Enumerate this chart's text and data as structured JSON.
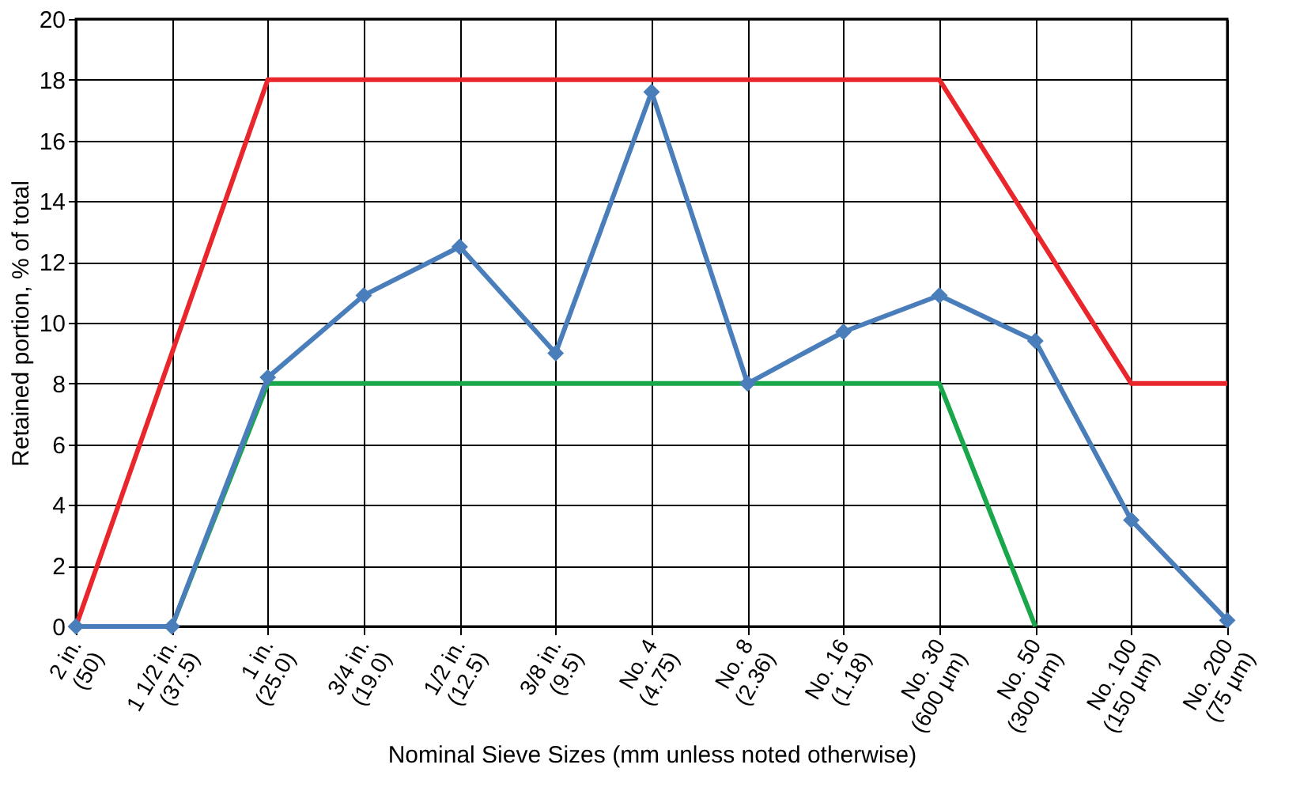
{
  "chart_data": {
    "type": "line",
    "xlabel": "Nominal Sieve Sizes (mm unless noted otherwise)",
    "ylabel": "Retained portion, % of total",
    "categories": [
      "2 in.\n(50)",
      "1 1/2 in.\n(37.5)",
      "1 in.\n(25.0)",
      "3/4 in.\n(19.0)",
      "1/2 in.\n(12.5)",
      "3/8 in.\n(9.5)",
      "No. 4\n(4.75)",
      "No. 8\n(2.36)",
      "No. 16\n(1.18)",
      "No. 30\n(600 µm)",
      "No. 50\n(300 µm)",
      "No. 100\n(150 µm)",
      "No. 200\n(75 µm)"
    ],
    "series": [
      {
        "color": "#e8262b",
        "marker": "none",
        "values": [
          0,
          9,
          18,
          18,
          18,
          18,
          18,
          18,
          18,
          18,
          13,
          8,
          8
        ]
      },
      {
        "color": "#1aa64a",
        "marker": "none",
        "values": [
          null,
          0,
          8,
          8,
          8,
          8,
          8,
          8,
          8,
          8,
          0,
          null,
          null
        ]
      },
      {
        "color": "#4a7ebb",
        "marker": "diamond",
        "values": [
          0,
          0,
          8.2,
          10.9,
          12.5,
          9,
          17.6,
          8,
          9.7,
          10.9,
          9.4,
          3.5,
          0.2
        ]
      }
    ],
    "ylim": [
      0,
      20
    ],
    "yticks": [
      0,
      2,
      4,
      6,
      8,
      10,
      12,
      14,
      16,
      18,
      20
    ],
    "grid": true
  }
}
